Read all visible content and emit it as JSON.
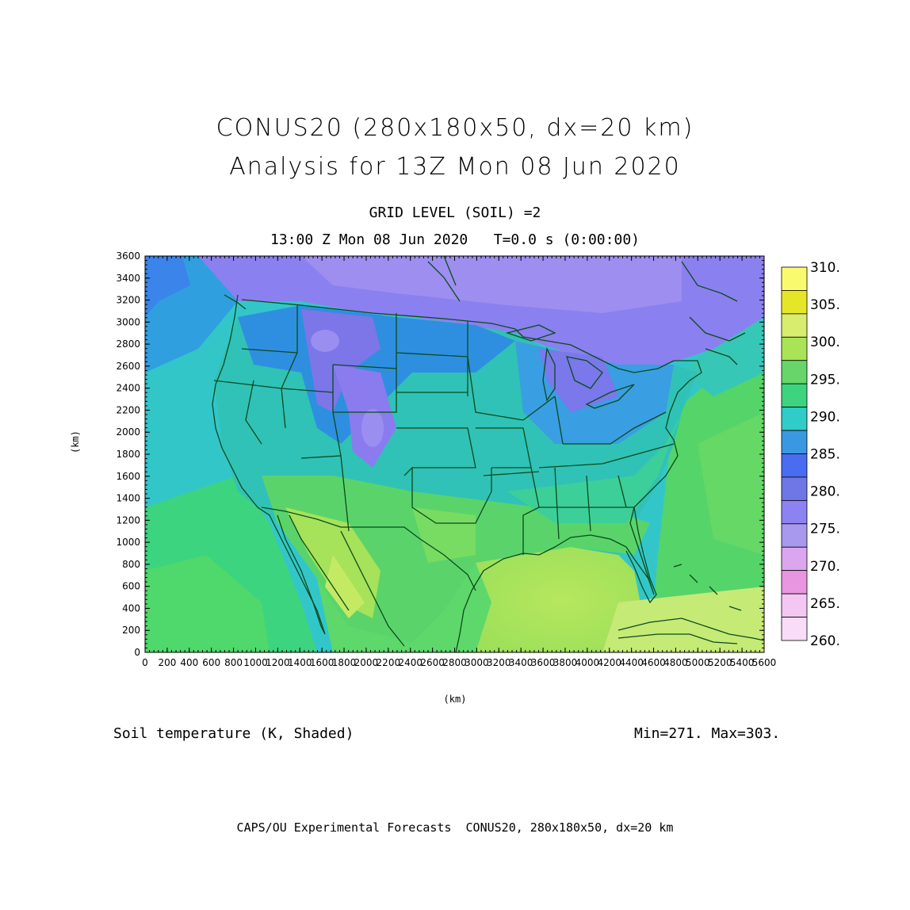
{
  "header": {
    "title_line1": "CONUS20 (280x180x50, dx=20 km)",
    "title_line2": "Analysis for 13Z Mon 08 Jun 2020",
    "subtitle_line1": "GRID LEVEL (SOIL) =2",
    "subtitle_line2": "13:00 Z Mon 08 Jun 2020   T=0.0 s (0:00:00)"
  },
  "map": {
    "x_axis_label": "(km)",
    "y_axis_label": "(km)",
    "x_range": [
      0,
      5600
    ],
    "y_range": [
      0,
      3600
    ],
    "x_ticks": [
      0,
      200,
      400,
      600,
      800,
      1000,
      1200,
      1400,
      1600,
      1800,
      2000,
      2200,
      2400,
      2600,
      2800,
      3000,
      3200,
      3400,
      3600,
      3800,
      4000,
      4200,
      4400,
      4600,
      4800,
      5000,
      5200,
      5400,
      5600
    ],
    "y_ticks": [
      0,
      200,
      400,
      600,
      800,
      1000,
      1200,
      1400,
      1600,
      1800,
      2000,
      2200,
      2400,
      2600,
      2800,
      3000,
      3200,
      3400,
      3600
    ],
    "colors": {
      "background": "#ffffff",
      "outline": "#0b4a1c",
      "ocean_pacific": "#3cb8d0",
      "ocean_atlantic": "#5ad46a",
      "gulf": "#b2e65c"
    }
  },
  "colorbar": {
    "labels": [
      "310.",
      "305.",
      "300.",
      "295.",
      "290.",
      "285.",
      "280.",
      "275.",
      "270.",
      "265.",
      "260."
    ],
    "colors_top_to_bottom": [
      "#fafa6e",
      "#e6e628",
      "#d8ec6e",
      "#a8e455",
      "#66d66a",
      "#3dd47f",
      "#30ccc8",
      "#3a98e0",
      "#4a6cf0",
      "#6f76e6",
      "#8c82f2",
      "#a899ee",
      "#dba6ee",
      "#e896e0",
      "#f4c6f2",
      "#f8dcf8"
    ]
  },
  "footer": {
    "field_label": "Soil temperature (K, Shaded)",
    "min_max": "Min=271. Max=303.",
    "credit": "CAPS/OU Experimental Forecasts  CONUS20, 280x180x50, dx=20 km"
  }
}
